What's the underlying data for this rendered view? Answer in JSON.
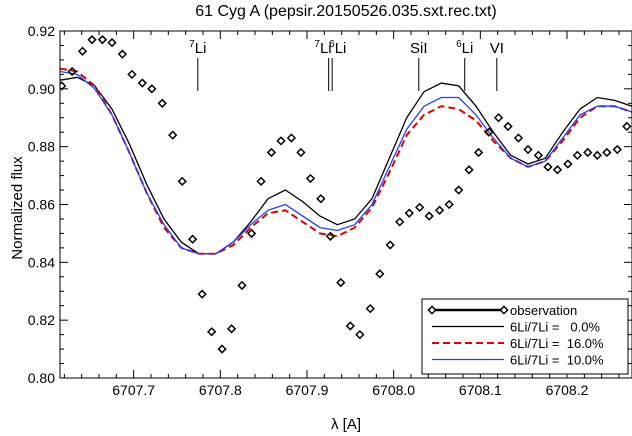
{
  "chart_data": {
    "type": "line",
    "title": "61 Cyg A (pepsir.20150526.035.sxt.rec.txt)",
    "xlabel": "λ [A]",
    "ylabel": "Normalized flux",
    "xlim": [
      6707.615,
      6708.275
    ],
    "ylim": [
      0.8,
      0.92
    ],
    "x_ticks": [
      6707.7,
      6707.8,
      6707.9,
      6708.0,
      6708.1,
      6708.2
    ],
    "x_tick_labels": [
      "6707.7",
      "6707.8",
      "6707.9",
      "6708.0",
      "6708.1",
      "6708.2"
    ],
    "y_ticks": [
      0.8,
      0.82,
      0.84,
      0.86,
      0.88,
      0.9,
      0.92
    ],
    "y_tick_labels": [
      "0.80",
      "0.82",
      "0.84",
      "0.86",
      "0.88",
      "0.90",
      "0.92"
    ],
    "grid": false,
    "legend_position": "bottom-right",
    "line_markers": [
      {
        "label_sup": "7",
        "label_main": "Li",
        "x": 6707.774
      },
      {
        "label_sup": "7",
        "label_main": "Li",
        "x": 6707.925
      },
      {
        "label_sup": "6",
        "label_main": "Li",
        "x": 6707.929
      },
      {
        "label_sup": "",
        "label_main": "SiI",
        "x": 6708.029
      },
      {
        "label_sup": "6",
        "label_main": "Li",
        "x": 6708.082
      },
      {
        "label_sup": "",
        "label_main": "VI",
        "x": 6708.119
      }
    ],
    "series": [
      {
        "name": "observation",
        "style": "markers",
        "color": "#000000",
        "x": [
          6707.617,
          6707.629,
          6707.641,
          6707.652,
          6707.664,
          6707.675,
          6707.687,
          6707.698,
          6707.71,
          6707.721,
          6707.733,
          6707.745,
          6707.756,
          6707.768,
          6707.779,
          6707.79,
          6707.802,
          6707.813,
          6707.825,
          6707.836,
          6707.847,
          6707.859,
          6707.87,
          6707.882,
          6707.893,
          6707.904,
          6707.916,
          6707.927,
          6707.939,
          6707.95,
          6707.961,
          6707.973,
          6707.984,
          6707.996,
          6708.007,
          6708.018,
          6708.03,
          6708.041,
          6708.053,
          6708.064,
          6708.075,
          6708.087,
          6708.098,
          6708.11,
          6708.121,
          6708.132,
          6708.144,
          6708.155,
          6708.167,
          6708.178,
          6708.189,
          6708.201,
          6708.212,
          6708.224,
          6708.235,
          6708.246,
          6708.258,
          6708.269
        ],
        "y": [
          0.901,
          0.906,
          0.913,
          0.917,
          0.917,
          0.916,
          0.912,
          0.905,
          0.902,
          0.9,
          0.895,
          0.884,
          0.868,
          0.848,
          0.829,
          0.816,
          0.81,
          0.817,
          0.832,
          0.85,
          0.868,
          0.878,
          0.882,
          0.883,
          0.878,
          0.869,
          0.862,
          0.849,
          0.833,
          0.818,
          0.815,
          0.824,
          0.836,
          0.846,
          0.854,
          0.857,
          0.859,
          0.856,
          0.858,
          0.86,
          0.865,
          0.872,
          0.878,
          0.885,
          0.89,
          0.887,
          0.883,
          0.879,
          0.877,
          0.873,
          0.872,
          0.874,
          0.877,
          0.878,
          0.877,
          0.878,
          0.879,
          0.887
        ]
      },
      {
        "name": "6Li/7Li = 0.0%",
        "style": "solid",
        "color": "#000000",
        "x": [
          6707.615,
          6707.635,
          6707.655,
          6707.675,
          6707.695,
          6707.715,
          6707.735,
          6707.755,
          6707.775,
          6707.795,
          6707.815,
          6707.835,
          6707.855,
          6707.875,
          6707.895,
          6707.915,
          6707.935,
          6707.955,
          6707.975,
          6707.995,
          6708.015,
          6708.035,
          6708.055,
          6708.075,
          6708.095,
          6708.115,
          6708.135,
          6708.155,
          6708.175,
          6708.195,
          6708.215,
          6708.235,
          6708.255,
          6708.275
        ],
        "y": [
          0.903,
          0.904,
          0.901,
          0.893,
          0.881,
          0.867,
          0.855,
          0.847,
          0.843,
          0.843,
          0.847,
          0.854,
          0.862,
          0.865,
          0.861,
          0.856,
          0.853,
          0.855,
          0.862,
          0.876,
          0.89,
          0.899,
          0.902,
          0.901,
          0.894,
          0.885,
          0.877,
          0.874,
          0.876,
          0.885,
          0.893,
          0.897,
          0.896,
          0.894
        ]
      },
      {
        "name": "6Li/7Li = 16.0%",
        "style": "dashed",
        "color": "#e00000",
        "x": [
          6707.615,
          6707.635,
          6707.655,
          6707.675,
          6707.695,
          6707.715,
          6707.735,
          6707.755,
          6707.775,
          6707.795,
          6707.815,
          6707.835,
          6707.855,
          6707.875,
          6707.895,
          6707.915,
          6707.935,
          6707.955,
          6707.975,
          6707.995,
          6708.015,
          6708.035,
          6708.055,
          6708.075,
          6708.095,
          6708.115,
          6708.135,
          6708.155,
          6708.175,
          6708.195,
          6708.215,
          6708.235,
          6708.255,
          6708.275
        ],
        "y": [
          0.907,
          0.906,
          0.901,
          0.891,
          0.878,
          0.864,
          0.852,
          0.845,
          0.843,
          0.843,
          0.846,
          0.852,
          0.857,
          0.858,
          0.854,
          0.85,
          0.849,
          0.852,
          0.859,
          0.871,
          0.884,
          0.891,
          0.894,
          0.893,
          0.889,
          0.882,
          0.876,
          0.873,
          0.875,
          0.882,
          0.89,
          0.894,
          0.894,
          0.892
        ]
      },
      {
        "name": "6Li/7Li = 10.0%",
        "style": "solid",
        "color": "#1f3fff",
        "x": [
          6707.615,
          6707.635,
          6707.655,
          6707.675,
          6707.695,
          6707.715,
          6707.735,
          6707.755,
          6707.775,
          6707.795,
          6707.815,
          6707.835,
          6707.855,
          6707.875,
          6707.895,
          6707.915,
          6707.935,
          6707.955,
          6707.975,
          6707.995,
          6708.015,
          6708.035,
          6708.055,
          6708.075,
          6708.095,
          6708.115,
          6708.135,
          6708.155,
          6708.175,
          6708.195,
          6708.215,
          6708.235,
          6708.255,
          6708.275
        ],
        "y": [
          0.906,
          0.905,
          0.9,
          0.891,
          0.878,
          0.864,
          0.853,
          0.845,
          0.843,
          0.843,
          0.847,
          0.853,
          0.858,
          0.86,
          0.856,
          0.852,
          0.851,
          0.853,
          0.86,
          0.873,
          0.886,
          0.894,
          0.897,
          0.897,
          0.891,
          0.883,
          0.876,
          0.873,
          0.875,
          0.883,
          0.891,
          0.894,
          0.894,
          0.892
        ]
      }
    ],
    "legend": [
      {
        "series": 0,
        "label": "observation"
      },
      {
        "series": 1,
        "label": "6Li/7Li =   0.0%"
      },
      {
        "series": 2,
        "label": "6Li/7Li =  16.0%"
      },
      {
        "series": 3,
        "label": "6Li/7Li =  10.0%"
      }
    ]
  }
}
